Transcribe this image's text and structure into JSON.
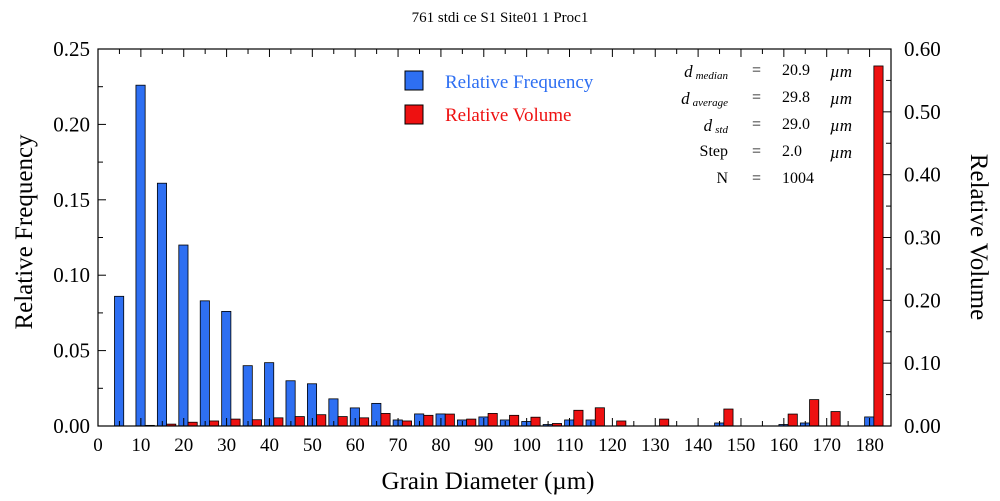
{
  "chart_data": {
    "type": "bar",
    "title": "761 stdi ce S1 Site01 1 Proc1",
    "xlabel": "Grain Diameter (µm)",
    "ylabel_left": "Relative Frequency",
    "ylabel_right": "Relative Volume",
    "xlim": [
      0,
      185
    ],
    "ylim_left": [
      0,
      0.25
    ],
    "ylim_right": [
      0,
      0.6
    ],
    "x_ticks": [
      "0",
      "10",
      "20",
      "30",
      "40",
      "50",
      "60",
      "70",
      "80",
      "90",
      "100",
      "110",
      "120",
      "130",
      "140",
      "150",
      "160",
      "170",
      "180"
    ],
    "y_ticks_left": [
      "0.00",
      "0.05",
      "0.10",
      "0.15",
      "0.20",
      "0.25"
    ],
    "y_ticks_right": [
      "0.00",
      "0.10",
      "0.20",
      "0.30",
      "0.40",
      "0.50",
      "0.60"
    ],
    "x": [
      6,
      11,
      16,
      21,
      26,
      31,
      36,
      41,
      46,
      51,
      56,
      61,
      66,
      71,
      76,
      81,
      86,
      91,
      96,
      101,
      106,
      111,
      116,
      121,
      126,
      131,
      136,
      141,
      146,
      151,
      156,
      161,
      166,
      171,
      176,
      181
    ],
    "series": [
      {
        "name": "Relative Frequency",
        "axis": "left",
        "color": "#2e6ff2",
        "values": [
          0.086,
          0.226,
          0.161,
          0.12,
          0.083,
          0.076,
          0.04,
          0.042,
          0.03,
          0.028,
          0.018,
          0.012,
          0.015,
          0.004,
          0.008,
          0.008,
          0.004,
          0.006,
          0.004,
          0.003,
          0.001,
          0.004,
          0.004,
          0,
          0,
          0,
          0,
          0,
          0.002,
          0,
          0,
          0.001,
          0.002,
          0,
          0,
          0.006
        ]
      },
      {
        "name": "Relative Volume",
        "axis": "right",
        "color": "#ee1111",
        "values": [
          0,
          0.001,
          0.003,
          0.006,
          0.008,
          0.011,
          0.01,
          0.013,
          0.015,
          0.018,
          0.015,
          0.013,
          0.02,
          0.008,
          0.017,
          0.019,
          0.011,
          0.02,
          0.017,
          0.014,
          0.004,
          0.025,
          0.029,
          0.008,
          0,
          0.011,
          0,
          0,
          0.027,
          0,
          0,
          0.019,
          0.042,
          0.023,
          0,
          0.573
        ]
      }
    ],
    "legend_position": "top-center",
    "stats": [
      {
        "label": "d",
        "sub": "median",
        "eq": "=",
        "value": "20.9",
        "unit": "µm"
      },
      {
        "label": "d",
        "sub": "average",
        "eq": "=",
        "value": "29.8",
        "unit": "µm"
      },
      {
        "label": "d",
        "sub": "std",
        "eq": "=",
        "value": "29.0",
        "unit": "µm"
      },
      {
        "label": "Step",
        "eq": "=",
        "value": "2.0",
        "unit": "µm"
      },
      {
        "label": "N",
        "eq": "=",
        "value": "1004"
      }
    ]
  }
}
